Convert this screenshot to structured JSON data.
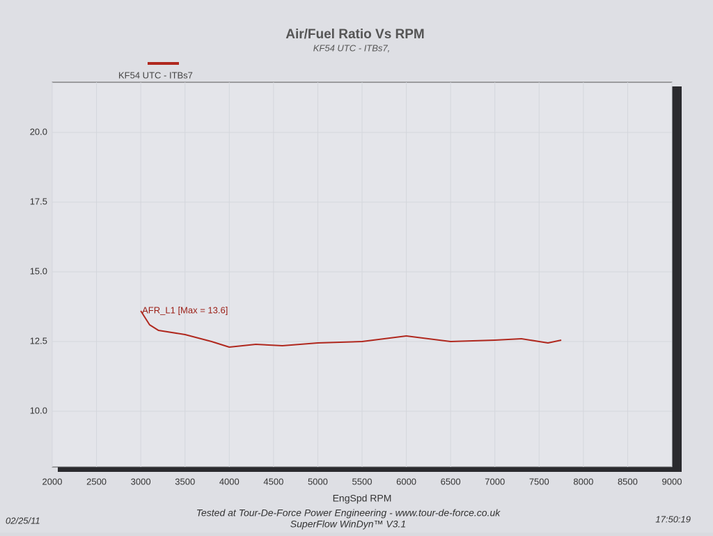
{
  "chart_data": {
    "type": "line",
    "title": "Air/Fuel Ratio Vs RPM",
    "subtitle": "KF54 UTC - ITBs7,",
    "x_label": "EngSpd RPM",
    "annotation": "AFR_L1 [Max = 13.6]",
    "footer": [
      "Tested at Tour-De-Force Power Engineering - www.tour-de-force.co.uk",
      "SuperFlow WinDyn™ V3.1"
    ],
    "date": "02/25/11",
    "time": "17:50:19",
    "x": [
      3000,
      3100,
      3200,
      3500,
      3800,
      4000,
      4300,
      4600,
      5000,
      5500,
      6000,
      6500,
      7000,
      7300,
      7600,
      7750
    ],
    "series": [
      {
        "name": "KF54 UTC - ITBs7",
        "color": "#b0281e",
        "values": [
          13.6,
          13.1,
          12.9,
          12.75,
          12.5,
          12.3,
          12.4,
          12.35,
          12.45,
          12.5,
          12.7,
          12.5,
          12.55,
          12.6,
          12.45,
          12.55
        ]
      }
    ],
    "xlim": [
      2000,
      9000
    ],
    "xticks": [
      2000,
      2500,
      3000,
      3500,
      4000,
      4500,
      5000,
      5500,
      6000,
      6500,
      7000,
      7500,
      8000,
      8500,
      9000
    ],
    "ylim": [
      8,
      21.8
    ],
    "yticks": [
      {
        "value": 10,
        "label": "10.0"
      },
      {
        "value": 12.5,
        "label": "12.5"
      },
      {
        "value": 15,
        "label": "15.0"
      },
      {
        "value": 17.5,
        "label": "17.5"
      },
      {
        "value": 20,
        "label": "20.0"
      }
    ],
    "grid": true
  }
}
